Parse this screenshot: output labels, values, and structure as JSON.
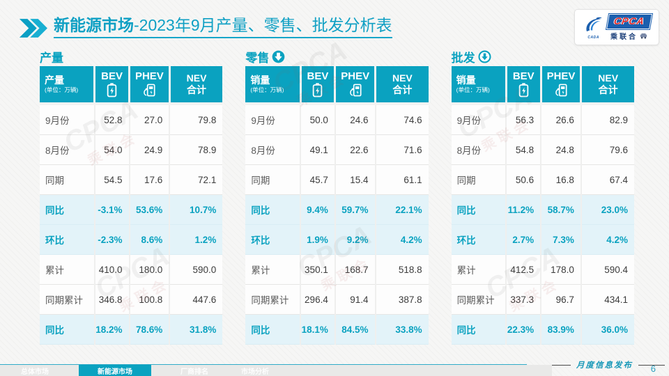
{
  "title": {
    "prefix": "新能源市场",
    "suffix": "-2023年9月产量、零售、批发分析表"
  },
  "logo": {
    "cpca": "CPCA",
    "sub": "乘联合",
    "swoosh": "CADA"
  },
  "watermark_text": {
    "line1": "CPCA",
    "line2": "乘联会"
  },
  "tables": [
    {
      "section_title": "产量",
      "icon": "none",
      "header": {
        "title": "产量",
        "unit": "(单位：万辆)",
        "col1": "BEV",
        "col2": "PHEV",
        "col3a": "NEV",
        "col3b": "合计"
      },
      "rows": [
        {
          "label": "9月份",
          "bev": "52.8",
          "phev": "27.0",
          "nev": "79.8",
          "highlight": false
        },
        {
          "label": "8月份",
          "bev": "54.0",
          "phev": "24.9",
          "nev": "78.9",
          "highlight": false
        },
        {
          "label": "同期",
          "bev": "54.5",
          "phev": "17.6",
          "nev": "72.1",
          "highlight": false
        },
        {
          "label": "同比",
          "bev": "-3.1%",
          "phev": "53.6%",
          "nev": "10.7%",
          "highlight": true
        },
        {
          "label": "环比",
          "bev": "-2.3%",
          "phev": "8.6%",
          "nev": "1.2%",
          "highlight": true
        },
        {
          "label": "累计",
          "bev": "410.0",
          "phev": "180.0",
          "nev": "590.0",
          "highlight": false
        },
        {
          "label": "同期累计",
          "bev": "346.8",
          "phev": "100.8",
          "nev": "447.6",
          "highlight": false
        },
        {
          "label": "同比",
          "bev": "18.2%",
          "phev": "78.6%",
          "nev": "31.8%",
          "highlight": true
        }
      ]
    },
    {
      "section_title": "零售",
      "icon": "down-arrow-filled",
      "header": {
        "title": "销量",
        "unit": "(单位：万辆)",
        "col1": "BEV",
        "col2": "PHEV",
        "col3a": "NEV",
        "col3b": "合计"
      },
      "rows": [
        {
          "label": "9月份",
          "bev": "50.0",
          "phev": "24.6",
          "nev": "74.6",
          "highlight": false
        },
        {
          "label": "8月份",
          "bev": "49.1",
          "phev": "22.6",
          "nev": "71.6",
          "highlight": false
        },
        {
          "label": "同期",
          "bev": "45.7",
          "phev": "15.4",
          "nev": "61.1",
          "highlight": false
        },
        {
          "label": "同比",
          "bev": "9.4%",
          "phev": "59.7%",
          "nev": "22.1%",
          "highlight": true
        },
        {
          "label": "环比",
          "bev": "1.9%",
          "phev": "9.2%",
          "nev": "4.2%",
          "highlight": true
        },
        {
          "label": "累计",
          "bev": "350.1",
          "phev": "168.7",
          "nev": "518.8",
          "highlight": false
        },
        {
          "label": "同期累计",
          "bev": "296.4",
          "phev": "91.4",
          "nev": "387.8",
          "highlight": false
        },
        {
          "label": "同比",
          "bev": "18.1%",
          "phev": "84.5%",
          "nev": "33.8%",
          "highlight": true
        }
      ]
    },
    {
      "section_title": "批发",
      "icon": "down-arrow-outline",
      "header": {
        "title": "销量",
        "unit": "(单位：万辆)",
        "col1": "BEV",
        "col2": "PHEV",
        "col3a": "NEV",
        "col3b": "合计"
      },
      "rows": [
        {
          "label": "9月份",
          "bev": "56.3",
          "phev": "26.6",
          "nev": "82.9",
          "highlight": false
        },
        {
          "label": "8月份",
          "bev": "54.8",
          "phev": "24.8",
          "nev": "79.6",
          "highlight": false
        },
        {
          "label": "同期",
          "bev": "50.6",
          "phev": "16.8",
          "nev": "67.4",
          "highlight": false
        },
        {
          "label": "同比",
          "bev": "11.2%",
          "phev": "58.7%",
          "nev": "23.0%",
          "highlight": true
        },
        {
          "label": "环比",
          "bev": "2.7%",
          "phev": "7.3%",
          "nev": "4.2%",
          "highlight": true
        },
        {
          "label": "累计",
          "bev": "412.5",
          "phev": "178.0",
          "nev": "590.4",
          "highlight": false
        },
        {
          "label": "同期累计",
          "bev": "337.3",
          "phev": "96.7",
          "nev": "434.1",
          "highlight": false
        },
        {
          "label": "同比",
          "bev": "22.3%",
          "phev": "83.9%",
          "nev": "36.0%",
          "highlight": true
        }
      ]
    }
  ],
  "footer": {
    "tabs": [
      {
        "label": "总体市场",
        "active": false
      },
      {
        "label": "新能源市场",
        "active": true
      },
      {
        "label": "厂商排名",
        "active": false
      },
      {
        "label": "市场分析",
        "active": false
      }
    ],
    "caption": "月度信息发布",
    "page": "6"
  },
  "colors": {
    "teal": "#0aa2c0",
    "highlight_bg": "#e3f3f9",
    "title": "#10a0c4"
  }
}
